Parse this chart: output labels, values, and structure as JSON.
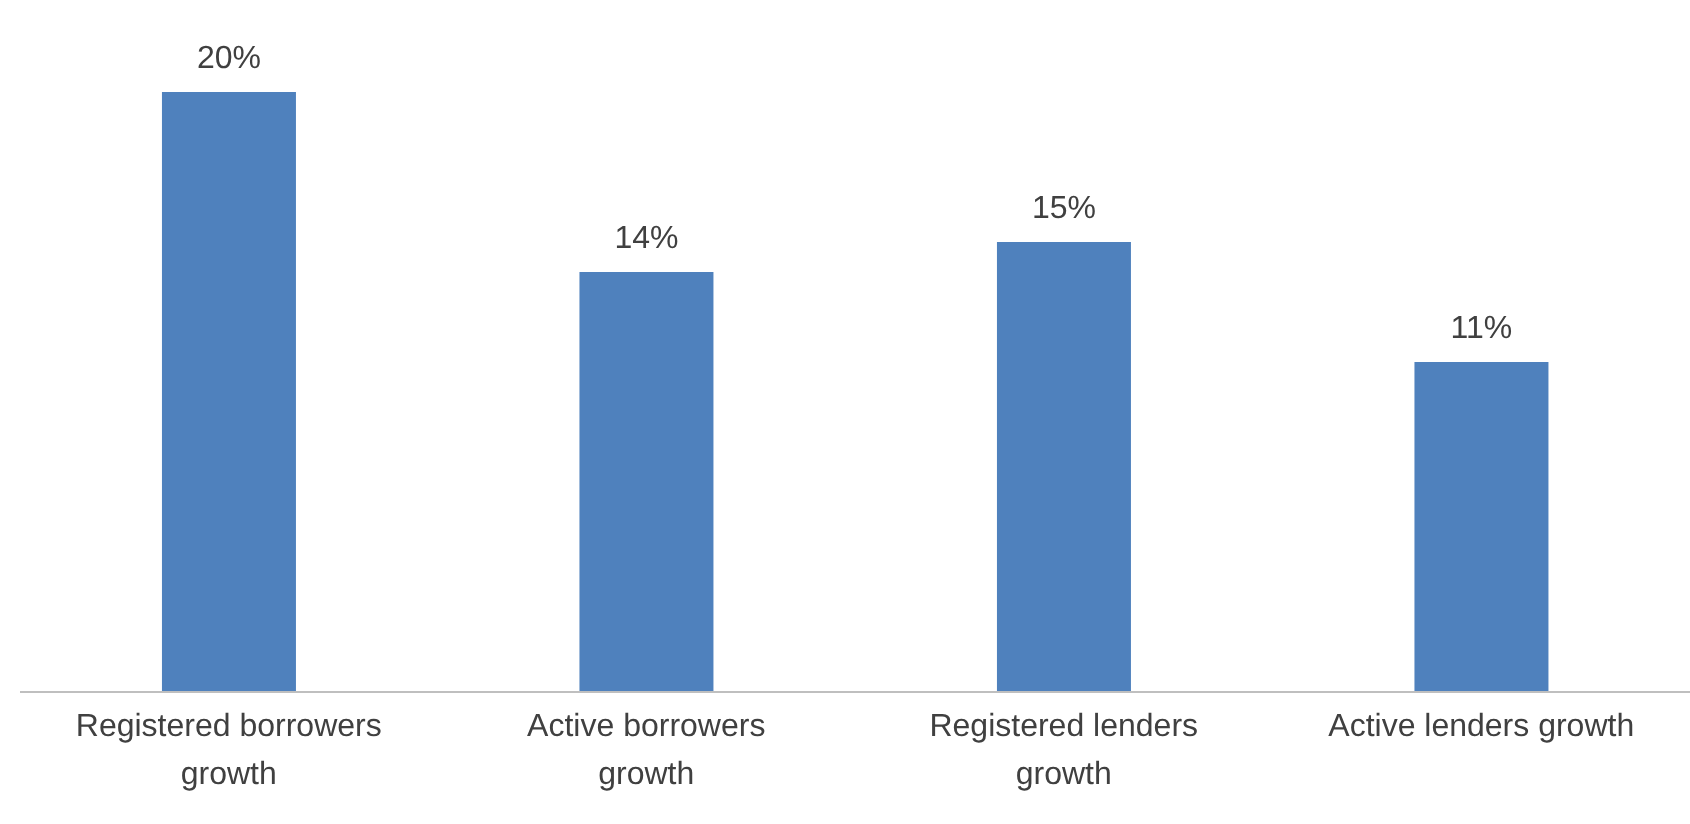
{
  "chart_data": {
    "type": "bar",
    "categories": [
      "Registered borrowers growth",
      "Active borrowers growth",
      "Registered lenders growth",
      "Active lenders growth"
    ],
    "values": [
      20,
      14,
      15,
      11
    ],
    "color": "#4f81bd",
    "data_labels": true,
    "value_labels": [
      "20%",
      "14%",
      "15%",
      "11%"
    ],
    "grid": false,
    "legend": false
  }
}
